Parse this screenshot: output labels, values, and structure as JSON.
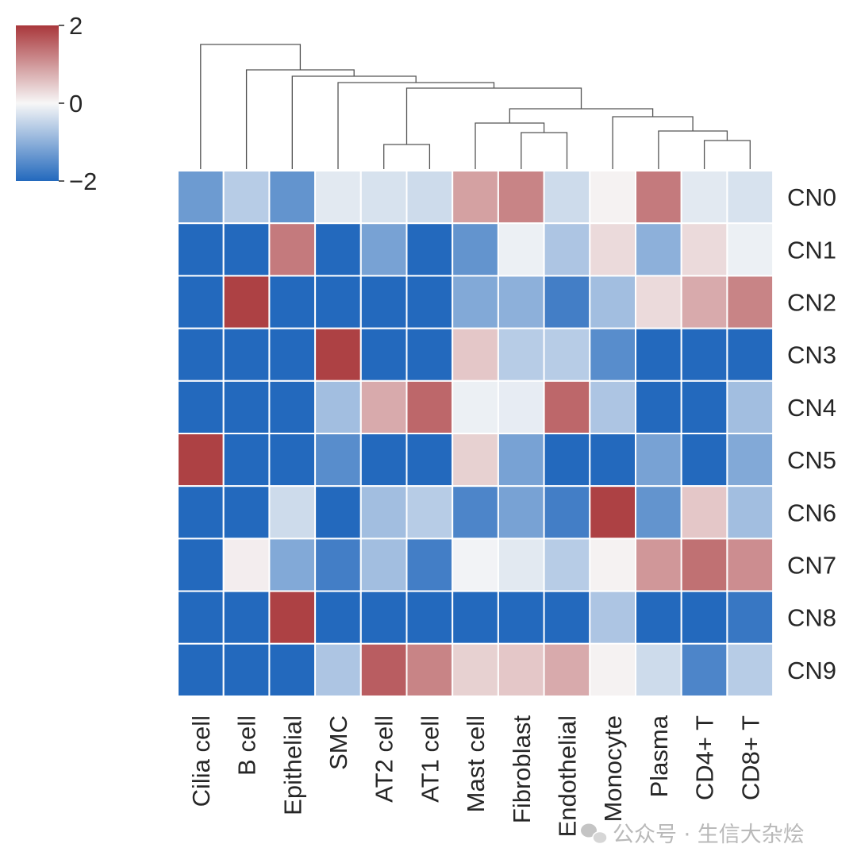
{
  "chart_data": {
    "type": "heatmap",
    "title": "",
    "columns": [
      "Cilia cell",
      "B cell",
      "Epithelial",
      "SMC",
      "AT2 cell",
      "AT1 cell",
      "Mast cell",
      "Fibroblast",
      "Endothelial",
      "Monocyte",
      "Plasma",
      "CD4+ T",
      "CD8+ T"
    ],
    "rows": [
      "CN0",
      "CN1",
      "CN2",
      "CN3",
      "CN4",
      "CN5",
      "CN6",
      "CN7",
      "CN8",
      "CN9"
    ],
    "values": [
      [
        -1.3,
        -0.6,
        -1.4,
        -0.2,
        -0.3,
        -0.4,
        0.9,
        1.2,
        -0.4,
        0.05,
        1.3,
        -0.2,
        -0.3
      ],
      [
        -2.0,
        -2.0,
        1.3,
        -2.0,
        -1.2,
        -2.0,
        -1.4,
        -0.1,
        -0.7,
        0.3,
        -1.0,
        0.3,
        -0.1
      ],
      [
        -2.0,
        1.9,
        -2.0,
        -2.0,
        -2.0,
        -2.0,
        -1.1,
        -1.0,
        -1.7,
        -0.8,
        0.3,
        0.8,
        1.2
      ],
      [
        -2.0,
        -2.0,
        -2.0,
        1.9,
        -2.0,
        -2.0,
        0.5,
        -0.6,
        -0.6,
        -1.5,
        -2.0,
        -2.0,
        -2.0
      ],
      [
        -2.0,
        -2.0,
        -2.0,
        -0.8,
        0.8,
        1.5,
        -0.1,
        -0.15,
        1.5,
        -0.7,
        -2.0,
        -2.0,
        -0.8
      ],
      [
        1.9,
        -2.0,
        -2.0,
        -1.5,
        -2.0,
        -2.0,
        0.4,
        -1.2,
        -2.0,
        -2.0,
        -1.2,
        -2.0,
        -1.1
      ],
      [
        -2.0,
        -2.0,
        -0.4,
        -2.0,
        -0.8,
        -0.6,
        -1.6,
        -1.2,
        -1.7,
        1.9,
        -1.4,
        0.5,
        -0.8
      ],
      [
        -2.0,
        0.1,
        -1.1,
        -1.7,
        -0.8,
        -1.7,
        -0.05,
        -0.2,
        -0.6,
        0.05,
        1.0,
        1.4,
        1.1
      ],
      [
        -2.0,
        -2.0,
        1.9,
        -2.0,
        -2.0,
        -2.0,
        -2.0,
        -2.0,
        -2.0,
        -0.7,
        -2.0,
        -2.0,
        -1.8
      ],
      [
        -2.0,
        -2.0,
        -2.0,
        -0.7,
        1.6,
        1.2,
        0.4,
        0.5,
        0.8,
        0.05,
        -0.4,
        -1.6,
        -0.6
      ]
    ],
    "vmin": -2,
    "vmax": 2,
    "colormap": {
      "low": "#2369bd",
      "mid": "#f7f7f7",
      "high": "#a9373b"
    },
    "colorbar_ticks": [
      {
        "value": 2,
        "label": "2"
      },
      {
        "value": 0,
        "label": "0"
      },
      {
        "value": -2,
        "label": "−2"
      }
    ],
    "dendrogram": {
      "orientation": "top",
      "merges": [
        [
          "AT2 cell",
          "AT1 cell"
        ],
        [
          "CD4+ T",
          "CD8+ T"
        ],
        [
          "Fibroblast",
          "Endothelial"
        ],
        [
          "Mast cell",
          "(Fibroblast, Endothelial)"
        ],
        [
          "Plasma",
          "(CD4+ T, CD8+ T)"
        ],
        [
          "Monocyte",
          "(Plasma, CD4+ T, CD8+ T)"
        ],
        [
          "(Mast cell … Endothelial)",
          "(Monocyte … CD8+ T)"
        ],
        [
          "(AT2 cell, AT1 cell)",
          "(Mast cell … CD8+ T)"
        ],
        [
          "SMC",
          "(AT2 cell … CD8+ T)"
        ],
        [
          "Epithelial",
          "(SMC … CD8+ T)"
        ],
        [
          "B cell",
          "(Epithelial … CD8+ T)"
        ],
        [
          "Cilia cell",
          "(B cell … CD8+ T)"
        ]
      ]
    }
  },
  "watermark": {
    "icon": "wechat-icon",
    "text": "公众号 · 生信大杂烩"
  }
}
